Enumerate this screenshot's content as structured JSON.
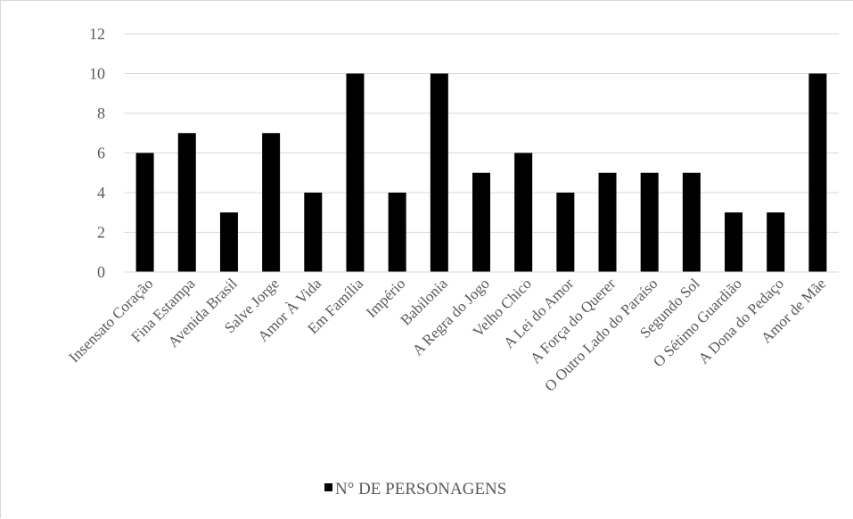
{
  "chart_data": {
    "type": "bar",
    "categories": [
      "Insensato Coração",
      "Fina Estampa",
      "Avenida Brasil",
      "Salve Jorge",
      "Amor À Vida",
      "Em Família",
      "Império",
      "Babilonia",
      "A Regra do Jogo",
      "Velho Chico",
      "A Lei do Amor",
      "A Força do Querer",
      "O Outro Lado do Paraíso",
      "Segundo Sol",
      "O Sétimo Guardião",
      "A Dona do Pedaço",
      "Amor de Mãe"
    ],
    "series": [
      {
        "name": "N° DE PERSONAGENS",
        "values": [
          6,
          7,
          3,
          7,
          4,
          10,
          4,
          10,
          5,
          6,
          4,
          5,
          5,
          5,
          3,
          3,
          10
        ],
        "color": "#000000"
      }
    ],
    "yticks": [
      "0",
      "2",
      "4",
      "6",
      "8",
      "10",
      "12"
    ],
    "ylim": [
      0,
      12
    ],
    "grid": true,
    "legend_position": "bottom"
  }
}
